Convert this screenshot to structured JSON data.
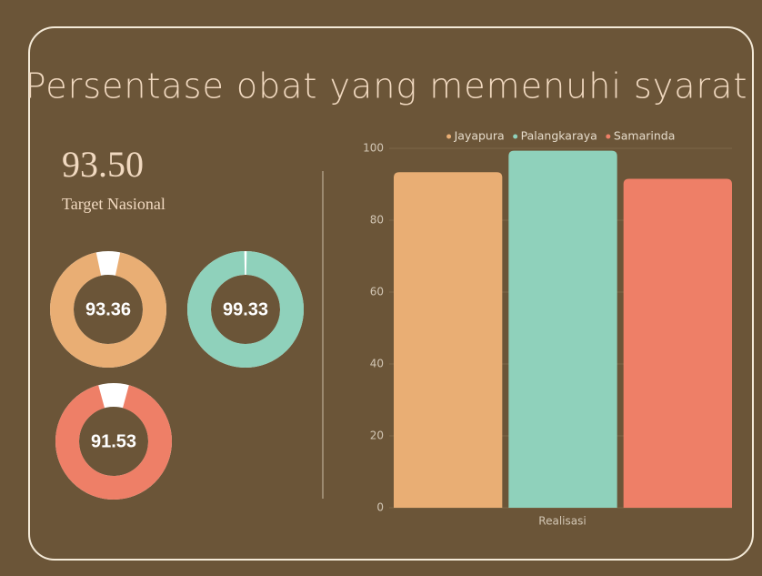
{
  "header": {
    "title": "Persentase obat yang memenuhi syarat",
    "target": "93.50",
    "target_label": "Target Nasional"
  },
  "chart_data": [
    {
      "type": "bar",
      "categories": [
        "Realisasi"
      ],
      "series": [
        {
          "name": "Jayapura",
          "color": "#e9ae74",
          "values": [
            93.36
          ]
        },
        {
          "name": "Palangkaraya",
          "color": "#8fd1bb",
          "values": [
            99.33
          ]
        },
        {
          "name": "Samarinda",
          "color": "#ee7f67",
          "values": [
            91.53
          ]
        }
      ],
      "ylim": [
        0,
        100
      ],
      "yticks": [
        0,
        20,
        40,
        60,
        80,
        100
      ],
      "grid": true,
      "legend": "top"
    },
    {
      "type": "donut",
      "values": [
        93.36
      ],
      "color": "#e9ae74",
      "ylim": [
        0,
        100
      ]
    },
    {
      "type": "donut",
      "values": [
        99.33
      ],
      "color": "#8fd1bb",
      "ylim": [
        0,
        100
      ]
    },
    {
      "type": "donut",
      "values": [
        91.53
      ],
      "color": "#ee7f67",
      "ylim": [
        0,
        100
      ]
    }
  ]
}
